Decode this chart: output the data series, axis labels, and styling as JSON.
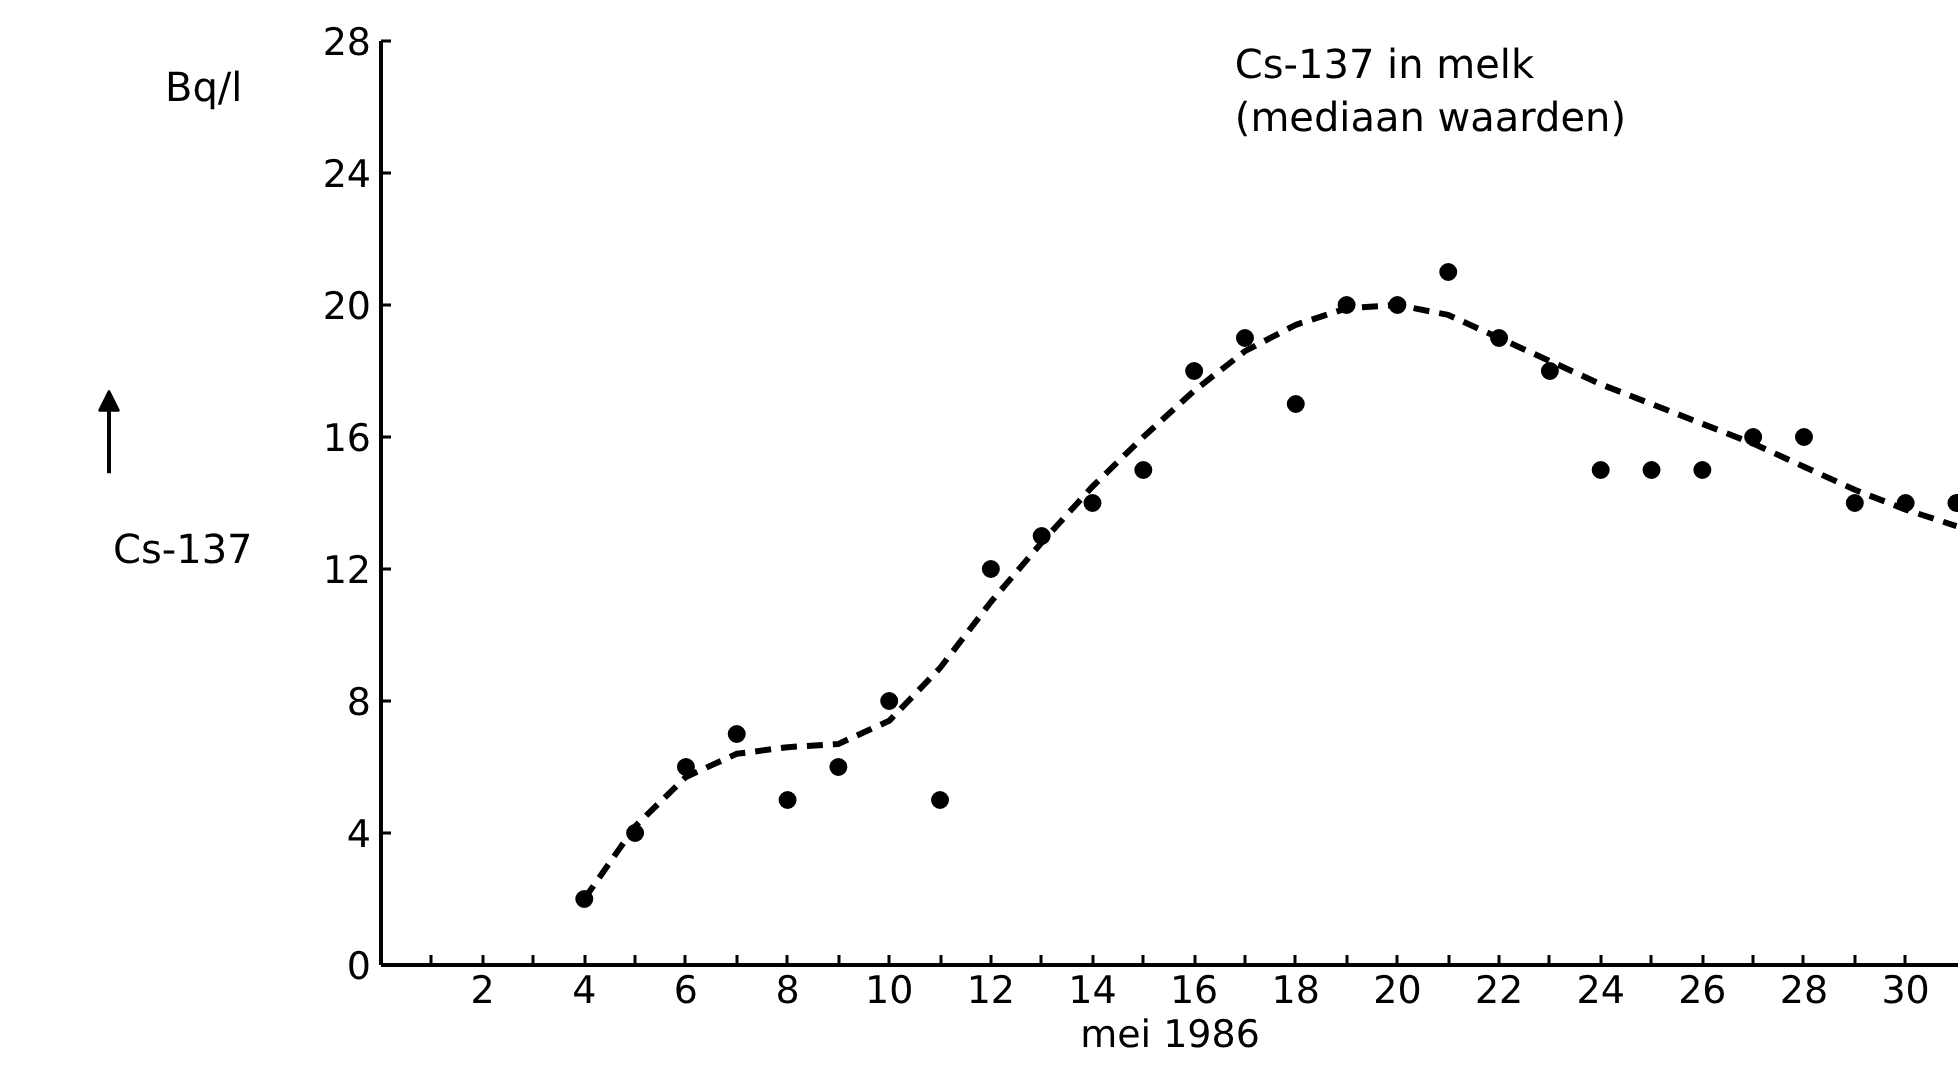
{
  "chart_data": {
    "type": "scatter",
    "title": "Cs-137 in melk\n(mediaan waarden)",
    "xlabel": "mei 1986",
    "ylabel": "Cs-137",
    "annotations": [
      "Bq/l"
    ],
    "x": [
      4,
      5,
      6,
      7,
      8,
      9,
      10,
      11,
      12,
      13,
      14,
      15,
      16,
      17,
      18,
      19,
      20,
      21,
      22,
      23,
      24,
      25,
      26,
      27,
      28,
      29,
      30,
      31
    ],
    "xlim": [
      0,
      31.05
    ],
    "ylim": [
      0,
      28
    ],
    "xticks": [
      {
        "value": 1,
        "label": null
      },
      2,
      {
        "value": 3,
        "label": null
      },
      4,
      {
        "value": 5,
        "label": null
      },
      6,
      {
        "value": 7,
        "label": null
      },
      8,
      {
        "value": 9,
        "label": null
      },
      10,
      {
        "value": 11,
        "label": null
      },
      12,
      {
        "value": 13,
        "label": null
      },
      14,
      {
        "value": 15,
        "label": null
      },
      16,
      {
        "value": 17,
        "label": null
      },
      18,
      {
        "value": 19,
        "label": null
      },
      20,
      {
        "value": 21,
        "label": null
      },
      22,
      {
        "value": 23,
        "label": null
      },
      24,
      {
        "value": 25,
        "label": null
      },
      26,
      {
        "value": 27,
        "label": null
      },
      28,
      {
        "value": 29,
        "label": null
      },
      30
    ],
    "yticks": [
      0,
      4,
      8,
      12,
      16,
      20,
      24,
      28
    ],
    "grid": false,
    "series": [
      {
        "color": "#000000",
        "marker": "circle",
        "values": [
          2,
          4,
          6,
          7,
          5,
          6,
          8,
          5,
          12,
          13,
          14,
          15,
          18,
          19,
          17,
          20,
          20,
          21,
          19,
          18,
          15,
          15,
          15,
          16,
          16,
          14,
          14,
          14
        ]
      },
      {
        "type": "line",
        "color": "#000000",
        "line_style": "dashed",
        "marker": "none",
        "x": [
          4,
          5,
          6,
          7,
          8,
          9,
          10,
          11,
          12,
          13,
          14,
          15,
          16,
          17,
          18,
          19,
          20,
          21,
          22,
          23,
          24,
          25,
          26,
          27,
          28,
          29,
          30,
          31
        ],
        "values": [
          2,
          4.2,
          5.7,
          6.4,
          6.6,
          6.7,
          7.4,
          9,
          11,
          12.8,
          14.5,
          16,
          17.4,
          18.6,
          19.4,
          19.9,
          20,
          19.7,
          19,
          18.3,
          17.6,
          17,
          16.4,
          15.8,
          15.1,
          14.4,
          13.8,
          13.3
        ]
      }
    ]
  }
}
